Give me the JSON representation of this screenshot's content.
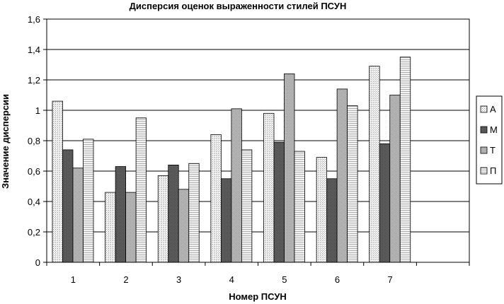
{
  "chart_data": {
    "type": "bar",
    "title": "Дисперсия оценок выраженности стилей ПСУН",
    "xlabel": "Номер ПСУН",
    "ylabel": "Значение дисперсии",
    "categories": [
      "1",
      "2",
      "3",
      "4",
      "5",
      "6",
      "7",
      ""
    ],
    "ylim": [
      0,
      1.6
    ],
    "yticks": [
      "0",
      "0,2",
      "0,4",
      "0,6",
      "0,8",
      "1",
      "1,2",
      "1,4",
      "1,6"
    ],
    "grid": true,
    "legend_position": "right",
    "series": [
      {
        "name": "А",
        "values": [
          1.06,
          0.46,
          0.57,
          0.84,
          0.98,
          0.69,
          1.29,
          null
        ],
        "fill": "pat-a"
      },
      {
        "name": "М",
        "values": [
          0.74,
          0.63,
          0.64,
          0.55,
          0.79,
          0.55,
          0.78,
          null
        ],
        "fill": "pat-m"
      },
      {
        "name": "Т",
        "values": [
          0.62,
          0.46,
          0.48,
          1.01,
          1.24,
          1.14,
          1.1,
          null
        ],
        "fill": "pat-t"
      },
      {
        "name": "П",
        "values": [
          0.81,
          0.95,
          0.65,
          0.74,
          0.73,
          1.03,
          1.35,
          null
        ],
        "fill": "pat-p"
      }
    ]
  }
}
